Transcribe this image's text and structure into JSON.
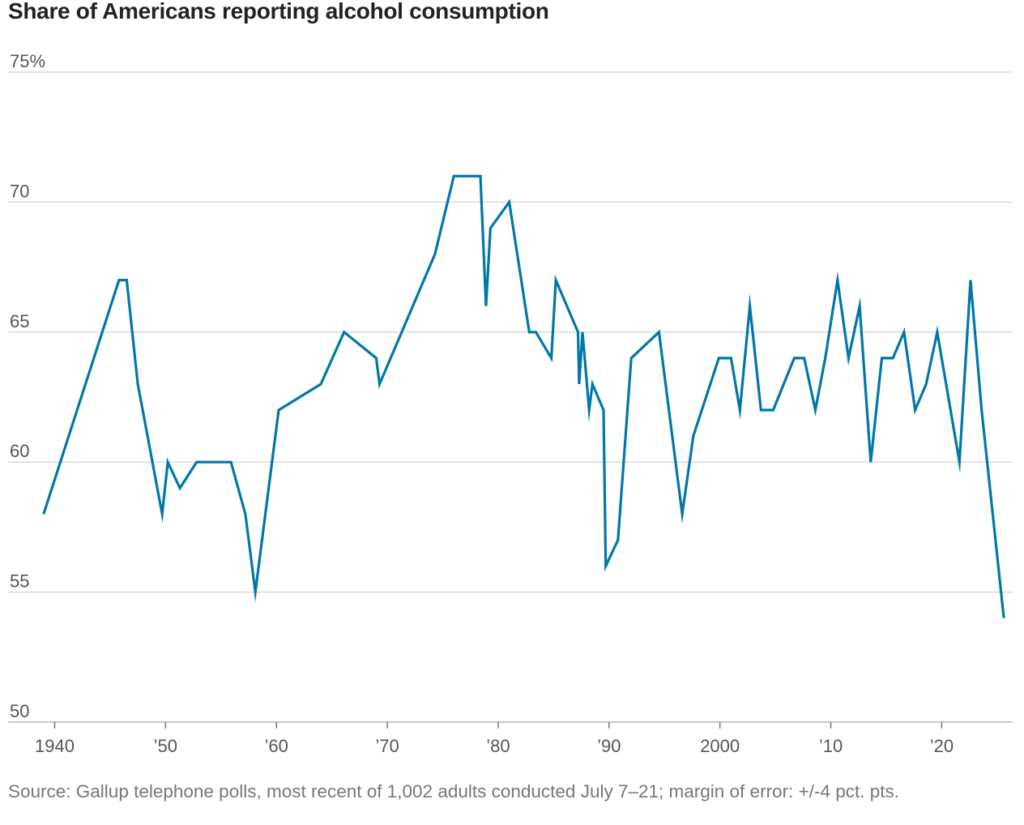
{
  "chart_data": {
    "type": "line",
    "title": "Share of Americans reporting alcohol consumption",
    "xlabel": "",
    "ylabel": "",
    "y_ticks": [
      {
        "value": 75,
        "label": "75%"
      },
      {
        "value": 70,
        "label": "70"
      },
      {
        "value": 65,
        "label": "65"
      },
      {
        "value": 60,
        "label": "60"
      },
      {
        "value": 55,
        "label": "55"
      },
      {
        "value": 50,
        "label": "50"
      }
    ],
    "x_ticks": [
      {
        "value": 1940,
        "label": "1940"
      },
      {
        "value": 1950,
        "label": "’50"
      },
      {
        "value": 1960,
        "label": "’60"
      },
      {
        "value": 1970,
        "label": "’70"
      },
      {
        "value": 1980,
        "label": "’80"
      },
      {
        "value": 1990,
        "label": "’90"
      },
      {
        "value": 2000,
        "label": "2000"
      },
      {
        "value": 2010,
        "label": "’10"
      },
      {
        "value": 2020,
        "label": "’20"
      }
    ],
    "xlim": [
      1935.8,
      2026.4
    ],
    "ylim": [
      50,
      75
    ],
    "grid": true,
    "series": [
      {
        "name": "Share reporting alcohol consumption",
        "color": "#0077a8",
        "x": [
          1939.0,
          1945.8,
          1946.5,
          1947.5,
          1949.7,
          1950.2,
          1951.3,
          1952.8,
          1955.9,
          1957.2,
          1958.1,
          1960.2,
          1964.0,
          1966.1,
          1969.0,
          1969.3,
          1974.3,
          1976.0,
          1978.4,
          1978.9,
          1979.3,
          1981.0,
          1982.8,
          1983.4,
          1984.8,
          1985.2,
          1987.2,
          1987.3,
          1987.6,
          1988.2,
          1988.5,
          1989.5,
          1989.7,
          1990.8,
          1992.0,
          1994.5,
          1996.6,
          1997.6,
          1999.9,
          2001.0,
          2001.8,
          2002.7,
          2003.7,
          2004.8,
          2006.7,
          2007.6,
          2008.6,
          2009.5,
          2010.6,
          2011.6,
          2012.6,
          2013.6,
          2014.6,
          2015.6,
          2016.6,
          2017.6,
          2018.6,
          2019.6,
          2021.6,
          2022.6,
          2023.6,
          2025.6
        ],
        "values": [
          58,
          67,
          67,
          63,
          58,
          60,
          59,
          60,
          60,
          58,
          55,
          62,
          63,
          65,
          64,
          63,
          68,
          71,
          71,
          66,
          69,
          70,
          65,
          65,
          64,
          67,
          65,
          63,
          65,
          62,
          63,
          62,
          56,
          57,
          64,
          65,
          58,
          61,
          64,
          64,
          62,
          66,
          62,
          62,
          64,
          64,
          62,
          64,
          67,
          64,
          66,
          60,
          64,
          64,
          65,
          62,
          63,
          65,
          60,
          67,
          62,
          54
        ]
      }
    ]
  },
  "source": "Source: Gallup telephone polls, most recent of 1,002 adults conducted July 7–21; margin of error: +/-4 pct. pts."
}
